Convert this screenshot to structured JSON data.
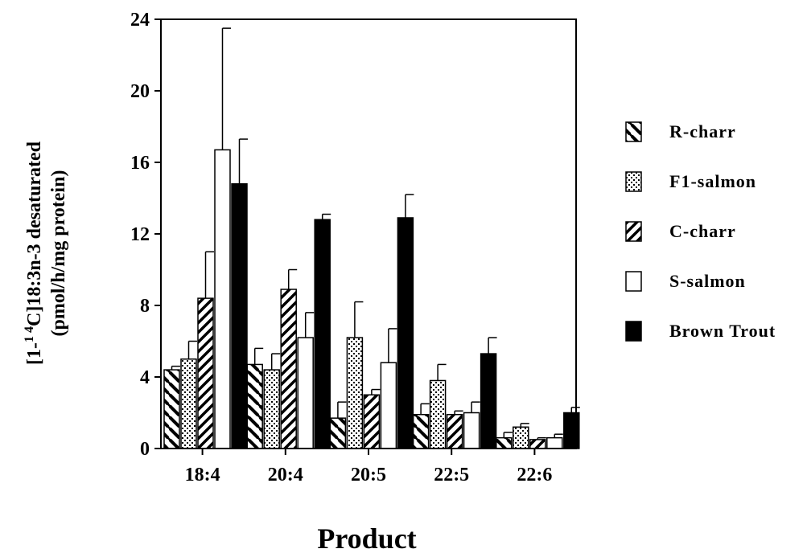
{
  "chart_data": {
    "type": "bar",
    "xlabel": "Product",
    "ylabel_line1_pre": "[1-",
    "ylabel_line1_sup": "1 4",
    "ylabel_line1_post": "C]18:3n-3 desaturated",
    "ylabel_line2": "(pmol/h/mg protein)",
    "ylim": [
      0,
      24
    ],
    "yticks": [
      "0",
      "4",
      "8",
      "12",
      "16",
      "20",
      "24"
    ],
    "categories": [
      "18:4",
      "20:4",
      "20:5",
      "22:5",
      "22:6"
    ],
    "legend_position": "right",
    "series": [
      {
        "name": "R-charr",
        "pattern": "diag-back",
        "values": [
          4.4,
          4.7,
          1.7,
          1.9,
          0.6
        ],
        "errors": [
          0.2,
          0.9,
          0.9,
          0.6,
          0.3
        ]
      },
      {
        "name": "F1-salmon",
        "pattern": "dots",
        "values": [
          5.0,
          4.4,
          6.2,
          3.8,
          1.2
        ],
        "errors": [
          1.0,
          0.9,
          2.0,
          0.9,
          0.2
        ]
      },
      {
        "name": "C-charr",
        "pattern": "diag-forward",
        "values": [
          8.4,
          8.9,
          3.0,
          1.9,
          0.5
        ],
        "errors": [
          2.6,
          1.1,
          0.3,
          0.2,
          0.1
        ]
      },
      {
        "name": "S-salmon",
        "pattern": "white",
        "values": [
          16.7,
          6.2,
          4.8,
          2.0,
          0.6
        ],
        "errors": [
          6.8,
          1.4,
          1.9,
          0.6,
          0.2
        ]
      },
      {
        "name": "Brown  Trout",
        "pattern": "black",
        "values": [
          14.8,
          12.8,
          12.9,
          5.3,
          2.0
        ],
        "errors": [
          2.5,
          0.3,
          1.3,
          0.9,
          0.3
        ]
      }
    ]
  }
}
